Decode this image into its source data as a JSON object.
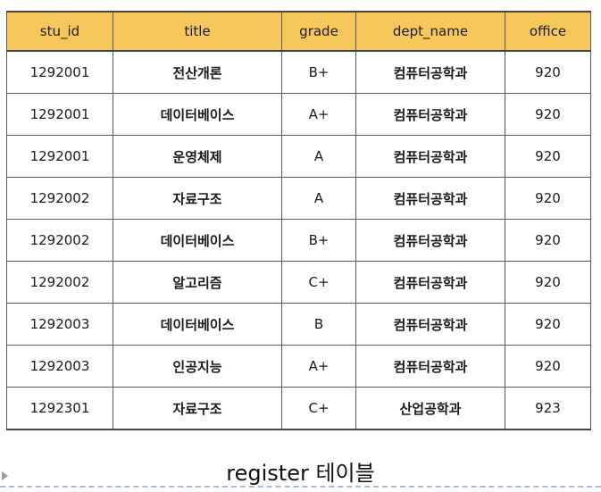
{
  "table": {
    "headers": [
      "stu_id",
      "title",
      "grade",
      "dept_name",
      "office"
    ],
    "rows": [
      [
        "1292001",
        "전산개론",
        "B+",
        "컴퓨터공학과",
        "920"
      ],
      [
        "1292001",
        "데이터베이스",
        "A+",
        "컴퓨터공학과",
        "920"
      ],
      [
        "1292001",
        "운영체제",
        "A",
        "컴퓨터공학과",
        "920"
      ],
      [
        "1292002",
        "자료구조",
        "A",
        "컴퓨터공학과",
        "920"
      ],
      [
        "1292002",
        "데이터베이스",
        "B+",
        "컴퓨터공학과",
        "920"
      ],
      [
        "1292002",
        "알고리즘",
        "C+",
        "컴퓨터공학과",
        "920"
      ],
      [
        "1292003",
        "데이터베이스",
        "B",
        "컴퓨터공학과",
        "920"
      ],
      [
        "1292003",
        "인공지능",
        "A+",
        "컴퓨터공학과",
        "920"
      ],
      [
        "1292301",
        "자료구조",
        "C+",
        "산업공학과",
        "923"
      ]
    ]
  },
  "caption": "register 테이블",
  "colors": {
    "header_bg": "#f6c75a",
    "border": "#5a5a5a",
    "dashed_line": "#a9bcd6"
  }
}
